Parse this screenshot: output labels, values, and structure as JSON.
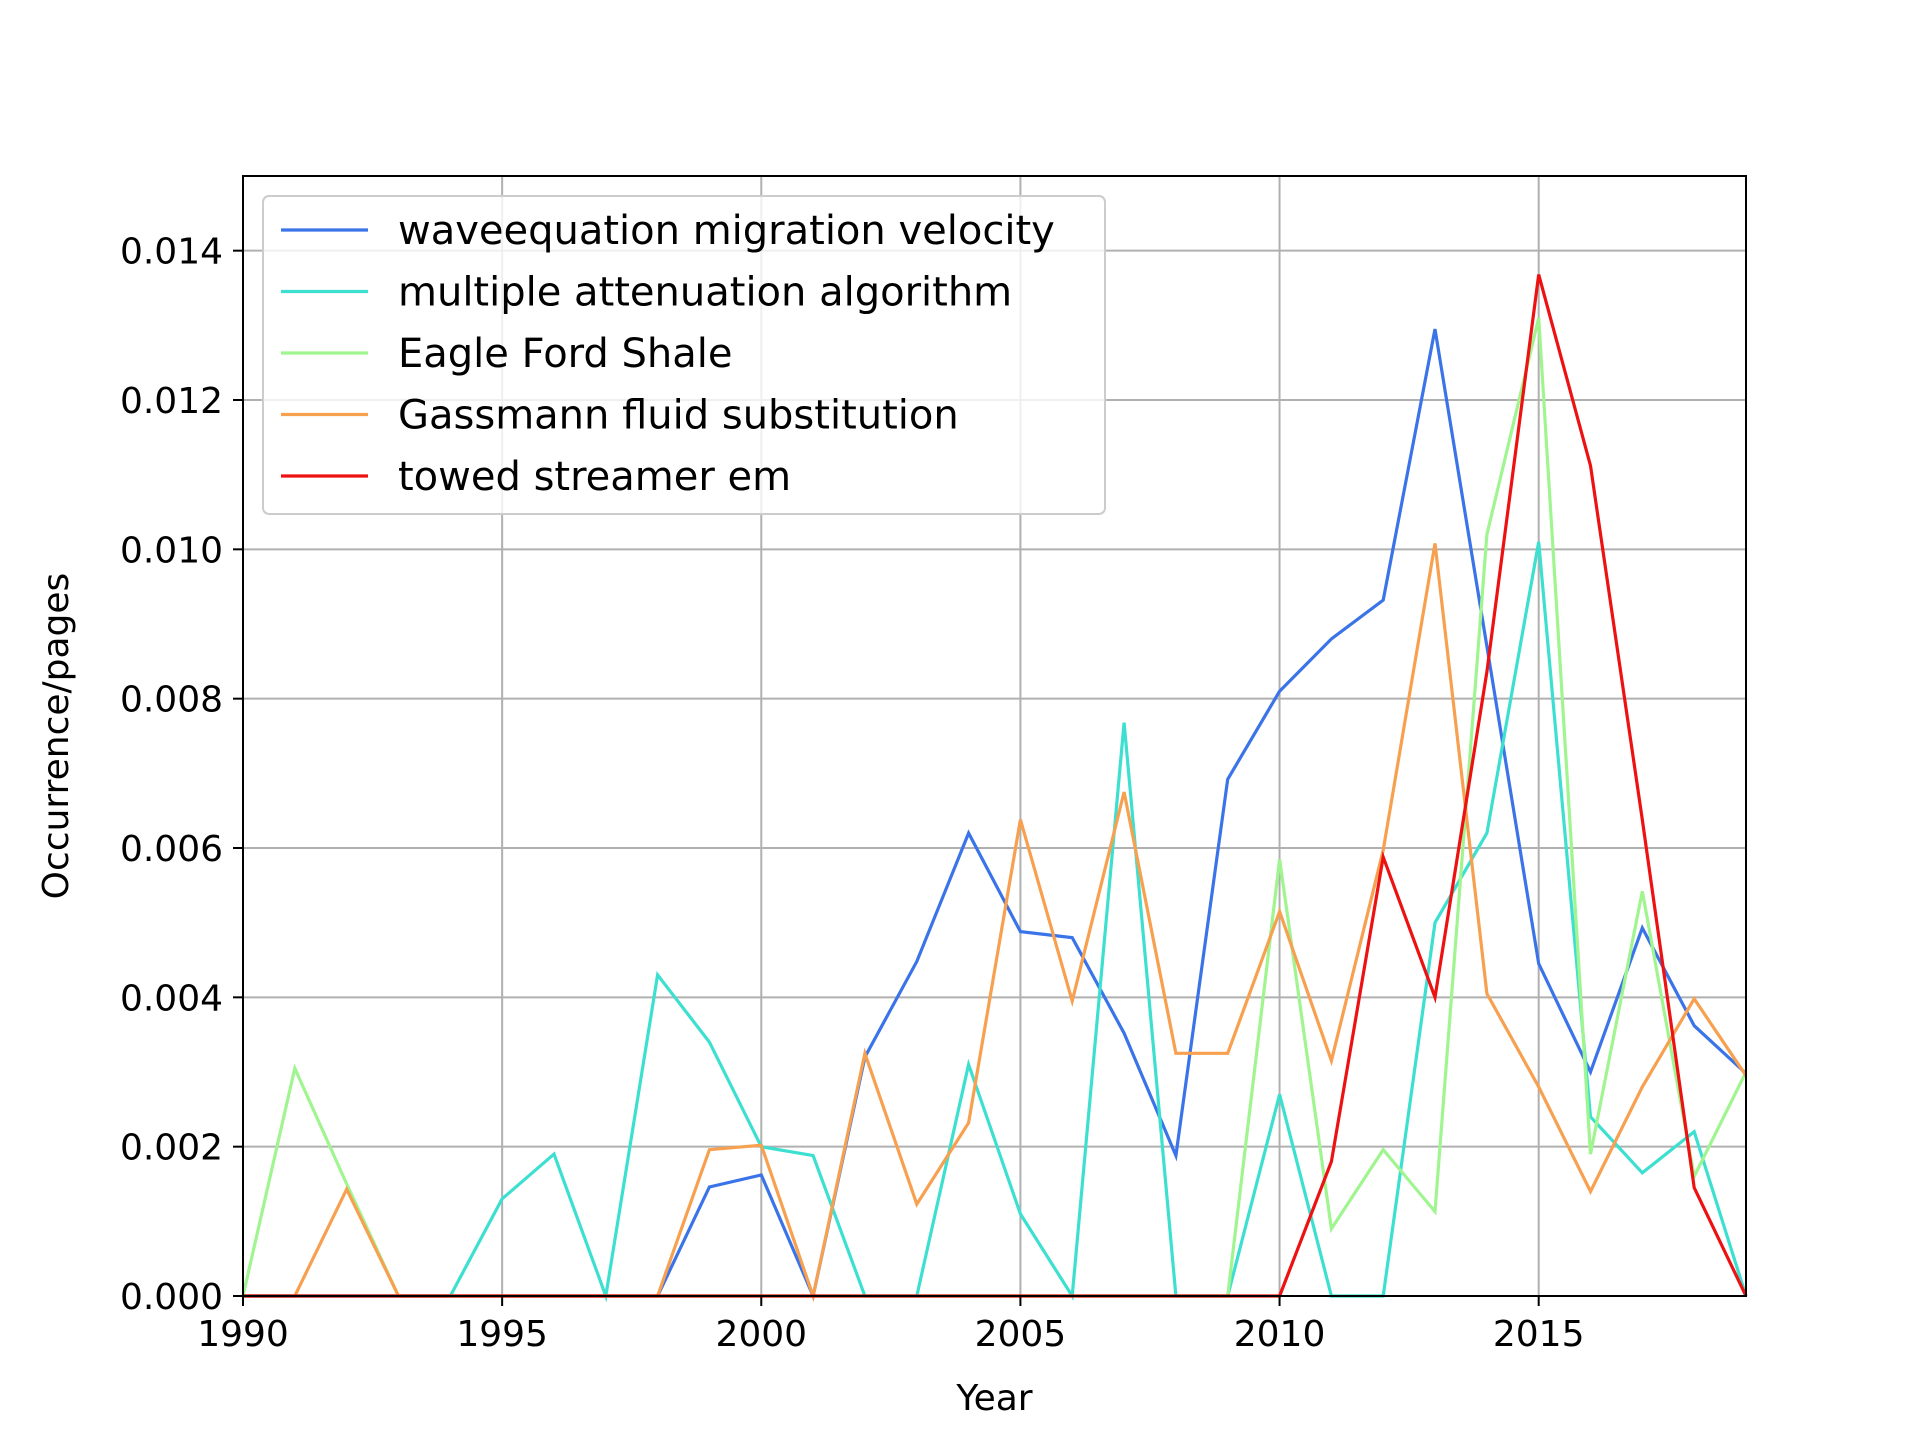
{
  "chart_data": {
    "type": "line",
    "title": "",
    "xlabel": "Year",
    "ylabel": "Occurrence/pages",
    "xlim": [
      1990,
      2019
    ],
    "ylim": [
      0,
      0.015
    ],
    "grid": true,
    "legend_position": "top-left",
    "x_ticks": [
      {
        "value": 1990,
        "label": "1990"
      },
      {
        "value": 1995,
        "label": "1995"
      },
      {
        "value": 2000,
        "label": "2000"
      },
      {
        "value": 2005,
        "label": "2005"
      },
      {
        "value": 2010,
        "label": "2010"
      },
      {
        "value": 2015,
        "label": "2015"
      }
    ],
    "y_ticks": [
      {
        "value": 0.0,
        "label": "0.000"
      },
      {
        "value": 0.002,
        "label": "0.002"
      },
      {
        "value": 0.004,
        "label": "0.004"
      },
      {
        "value": 0.006,
        "label": "0.006"
      },
      {
        "value": 0.008,
        "label": "0.008"
      },
      {
        "value": 0.01,
        "label": "0.010"
      },
      {
        "value": 0.012,
        "label": "0.012"
      },
      {
        "value": 0.014,
        "label": "0.014"
      }
    ],
    "x": [
      1990,
      1991,
      1992,
      1993,
      1994,
      1995,
      1996,
      1997,
      1998,
      1999,
      2000,
      2001,
      2002,
      2003,
      2004,
      2005,
      2006,
      2007,
      2008,
      2009,
      2010,
      2011,
      2012,
      2013,
      2014,
      2015,
      2016,
      2017,
      2018,
      2019
    ],
    "series": [
      {
        "name": "waveequation migration velocity",
        "color": "#3a74e8",
        "values": [
          0,
          0,
          0,
          0,
          0,
          0,
          0,
          0,
          0,
          0.00146,
          0.00162,
          0,
          0.0032,
          0.00448,
          0.0062,
          0.00488,
          0.0048,
          0.00352,
          0.00188,
          0.00692,
          0.0081,
          0.0088,
          0.00932,
          0.01295,
          0.0087,
          0.00445,
          0.003,
          0.00493,
          0.00362,
          0.00298
        ]
      },
      {
        "name": "multiple attenuation algorithm",
        "color": "#3de0d0",
        "values": [
          0,
          0,
          0,
          0,
          0,
          0.0013,
          0.0019,
          0,
          0.0043,
          0.0034,
          0.002,
          0.00188,
          0,
          0,
          0.0031,
          0.0011,
          0,
          0.00768,
          0,
          0,
          0.0027,
          0,
          0,
          0.005,
          0.0062,
          0.0101,
          0.0024,
          0.00165,
          0.0022,
          0
        ]
      },
      {
        "name": "Eagle Ford Shale",
        "color": "#a0f590",
        "values": [
          0,
          0.00305,
          0.0015,
          0,
          0,
          0,
          0,
          0,
          0,
          0,
          0,
          0,
          0,
          0,
          0,
          0,
          0,
          0,
          0,
          0,
          0.00585,
          0.0009,
          0.00196,
          0.00113,
          0.0102,
          0.0131,
          0.0019,
          0.00542,
          0.0016,
          0.003
        ]
      },
      {
        "name": "Gassmann fluid substitution",
        "color": "#f7a050",
        "values": [
          0,
          0,
          0.00143,
          0,
          0,
          0,
          0,
          0,
          0,
          0.00196,
          0.00202,
          0,
          0.00325,
          0.00123,
          0.00232,
          0.00638,
          0.00395,
          0.00675,
          0.00325,
          0.00325,
          0.00515,
          0.00315,
          0.00597,
          0.01008,
          0.00405,
          0.0028,
          0.0014,
          0.0028,
          0.00398,
          0.00295
        ]
      },
      {
        "name": "towed streamer em",
        "color": "#ee1111",
        "values": [
          0,
          0,
          0,
          0,
          0,
          0,
          0,
          0,
          0,
          0,
          0,
          0,
          0,
          0,
          0,
          0,
          0,
          0,
          0,
          0,
          0,
          0.0018,
          0.00588,
          0.004,
          0.00836,
          0.01368,
          0.01112,
          0.00638,
          0.00145,
          0
        ]
      }
    ]
  }
}
